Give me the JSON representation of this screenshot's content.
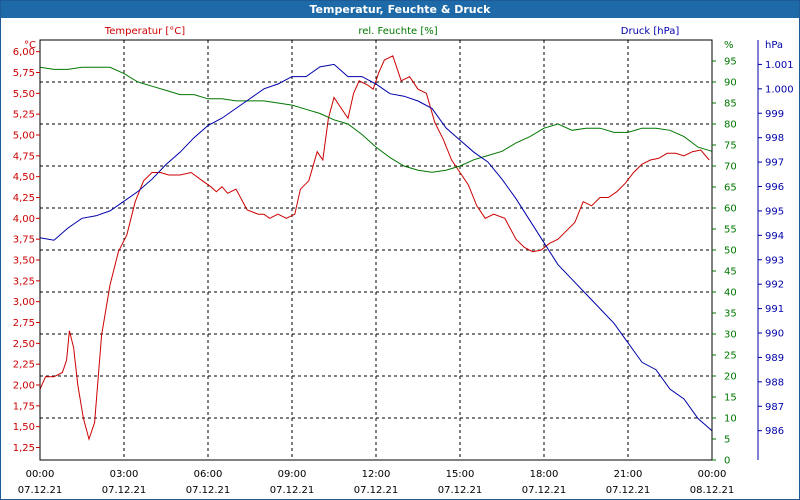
{
  "window": {
    "title": "Temperatur, Feuchte & Druck"
  },
  "colors": {
    "temperature": "#cc0000",
    "humidity": "#007700",
    "pressure": "#0000aa",
    "grid": "#000000"
  },
  "chart_data": {
    "type": "line",
    "title": "Temperatur, Feuchte & Druck",
    "grid": true,
    "x_ticks": [
      {
        "hours": 0,
        "time": "00:00",
        "date": "07.12.21"
      },
      {
        "hours": 3,
        "time": "03:00",
        "date": "07.12.21"
      },
      {
        "hours": 6,
        "time": "06:00",
        "date": "07.12.21"
      },
      {
        "hours": 9,
        "time": "09:00",
        "date": "07.12.21"
      },
      {
        "hours": 12,
        "time": "12:00",
        "date": "07.12.21"
      },
      {
        "hours": 15,
        "time": "15:00",
        "date": "07.12.21"
      },
      {
        "hours": 18,
        "time": "18:00",
        "date": "07.12.21"
      },
      {
        "hours": 21,
        "time": "21:00",
        "date": "07.12.21"
      },
      {
        "hours": 24,
        "time": "00:00",
        "date": "08.12.21"
      }
    ],
    "axes": {
      "temperature": {
        "label": "Temperatur [°C]",
        "unit": "°C",
        "ylim": [
          1.1,
          6.14
        ],
        "ticks": [
          "6,00",
          "5,75",
          "5,50",
          "5,25",
          "5,00",
          "4,75",
          "4,50",
          "4,25",
          "4,00",
          "3,75",
          "3,50",
          "3,25",
          "3,00",
          "2,75",
          "2,50",
          "2,25",
          "2,00",
          "1,75",
          "1,50",
          "1,25"
        ],
        "tick_values": [
          6,
          5.75,
          5.5,
          5.25,
          5,
          4.75,
          4.5,
          4.25,
          4,
          3.75,
          3.5,
          3.25,
          3,
          2.75,
          2.5,
          2.25,
          2,
          1.75,
          1.5,
          1.25
        ]
      },
      "humidity": {
        "label": "rel. Feuchte [%]",
        "unit": "%",
        "ylim": [
          0,
          100
        ],
        "ticks": [
          "95",
          "90",
          "85",
          "80",
          "75",
          "70",
          "65",
          "60",
          "55",
          "50",
          "45",
          "40",
          "35",
          "30",
          "25",
          "20",
          "15",
          "10",
          "5",
          "0"
        ],
        "tick_values": [
          95,
          90,
          85,
          80,
          75,
          70,
          65,
          60,
          55,
          50,
          45,
          40,
          35,
          30,
          25,
          20,
          15,
          10,
          5,
          0
        ]
      },
      "pressure": {
        "label": "Druck [hPa]",
        "unit": "hPa",
        "ylim": [
          984.8,
          1002.0
        ],
        "ticks": [
          "1.001",
          "1.000",
          "999",
          "998",
          "997",
          "996",
          "995",
          "994",
          "993",
          "992",
          "991",
          "990",
          "989",
          "988",
          "987",
          "986"
        ],
        "tick_values": [
          1001,
          1000,
          999,
          998,
          997,
          996,
          995,
          994,
          993,
          992,
          991,
          990,
          989,
          988,
          987,
          986
        ]
      }
    },
    "series": [
      {
        "name": "Temperatur [°C]",
        "axis": "temperature",
        "x": [
          0,
          0.2,
          0.5,
          0.8,
          0.95,
          1.05,
          1.2,
          1.35,
          1.55,
          1.75,
          1.95,
          2.2,
          2.5,
          2.8,
          3.1,
          3.4,
          3.7,
          4.0,
          4.3,
          4.6,
          5.0,
          5.4,
          5.8,
          6.1,
          6.3,
          6.5,
          6.7,
          7.0,
          7.4,
          7.8,
          8.0,
          8.2,
          8.5,
          8.8,
          9.1,
          9.3,
          9.6,
          9.9,
          10.1,
          10.3,
          10.5,
          10.8,
          11.0,
          11.2,
          11.4,
          11.7,
          11.9,
          12.1,
          12.3,
          12.6,
          12.9,
          13.2,
          13.5,
          13.8,
          14.1,
          14.4,
          14.7,
          15.0,
          15.3,
          15.6,
          15.9,
          16.2,
          16.6,
          17.0,
          17.3,
          17.6,
          17.9,
          18.2,
          18.5,
          18.8,
          19.1,
          19.4,
          19.7,
          20.0,
          20.3,
          20.6,
          20.9,
          21.2,
          21.5,
          21.8,
          22.1,
          22.4,
          22.7,
          23.0,
          23.3,
          23.6,
          23.9
        ],
        "values": [
          1.95,
          2.1,
          2.1,
          2.15,
          2.3,
          2.65,
          2.45,
          2.0,
          1.6,
          1.35,
          1.55,
          2.6,
          3.2,
          3.6,
          3.8,
          4.2,
          4.45,
          4.55,
          4.55,
          4.52,
          4.52,
          4.55,
          4.45,
          4.38,
          4.32,
          4.38,
          4.3,
          4.35,
          4.1,
          4.05,
          4.05,
          4.0,
          4.05,
          4.0,
          4.05,
          4.35,
          4.45,
          4.8,
          4.7,
          5.2,
          5.45,
          5.3,
          5.2,
          5.5,
          5.65,
          5.6,
          5.55,
          5.75,
          5.9,
          5.95,
          5.65,
          5.7,
          5.55,
          5.5,
          5.15,
          4.95,
          4.7,
          4.55,
          4.4,
          4.15,
          4.0,
          4.05,
          4.0,
          3.75,
          3.65,
          3.6,
          3.62,
          3.7,
          3.75,
          3.85,
          3.95,
          4.2,
          4.15,
          4.25,
          4.25,
          4.32,
          4.42,
          4.55,
          4.65,
          4.7,
          4.72,
          4.78,
          4.78,
          4.75,
          4.8,
          4.82,
          4.7
        ]
      },
      {
        "name": "rel. Feuchte [%]",
        "axis": "humidity",
        "x": [
          0,
          0.5,
          1.0,
          1.5,
          2.0,
          2.5,
          3.0,
          3.5,
          4.0,
          4.5,
          5.0,
          5.5,
          6.0,
          6.5,
          7.0,
          7.5,
          8.0,
          8.5,
          9.0,
          9.5,
          10.0,
          10.5,
          11.0,
          11.5,
          12.0,
          12.5,
          13.0,
          13.5,
          14.0,
          14.5,
          15.0,
          15.5,
          16.0,
          16.5,
          17.0,
          17.5,
          18.0,
          18.5,
          19.0,
          19.5,
          20.0,
          20.5,
          21.0,
          21.5,
          22.0,
          22.5,
          23.0,
          23.5,
          24.0
        ],
        "values": [
          93.5,
          93,
          93,
          93.5,
          93.5,
          93.5,
          92,
          90,
          89,
          88,
          87,
          87,
          86,
          86,
          85.5,
          85.5,
          85.5,
          85,
          84.5,
          83.5,
          82.5,
          81,
          80,
          77.5,
          74.5,
          72,
          70,
          69,
          68.5,
          69,
          70,
          71.5,
          72.5,
          73.5,
          75.5,
          77,
          79,
          80,
          78.5,
          79,
          79,
          78,
          78,
          79,
          79,
          78.5,
          77,
          74.5,
          73.5
        ]
      },
      {
        "name": "Druck [hPa]",
        "axis": "pressure",
        "x": [
          0,
          0.5,
          1.0,
          1.5,
          2.0,
          2.5,
          3.0,
          3.5,
          4.0,
          4.5,
          5.0,
          5.5,
          6.0,
          6.5,
          7.0,
          7.5,
          8.0,
          8.5,
          9.0,
          9.5,
          10.0,
          10.5,
          11.0,
          11.5,
          12.0,
          12.5,
          13.0,
          13.5,
          14.0,
          14.5,
          15.0,
          15.5,
          16.0,
          16.5,
          17.0,
          17.5,
          18.0,
          18.5,
          19.0,
          19.5,
          20.0,
          20.5,
          21.0,
          21.5,
          22.0,
          22.5,
          23.0,
          23.5,
          24.0
        ],
        "values": [
          993.9,
          993.8,
          994.3,
          994.7,
          994.8,
          995.0,
          995.4,
          995.8,
          996.3,
          996.9,
          997.4,
          998.0,
          998.5,
          998.8,
          999.2,
          999.6,
          1000.0,
          1000.2,
          1000.5,
          1000.5,
          1000.9,
          1001.0,
          1000.5,
          1000.5,
          1000.2,
          999.8,
          999.7,
          999.5,
          999.2,
          998.4,
          997.9,
          997.4,
          997.0,
          996.3,
          995.5,
          994.6,
          993.7,
          992.8,
          992.2,
          991.6,
          991.0,
          990.4,
          989.6,
          988.8,
          988.5,
          987.7,
          987.3,
          986.5,
          986.0
        ]
      }
    ]
  }
}
